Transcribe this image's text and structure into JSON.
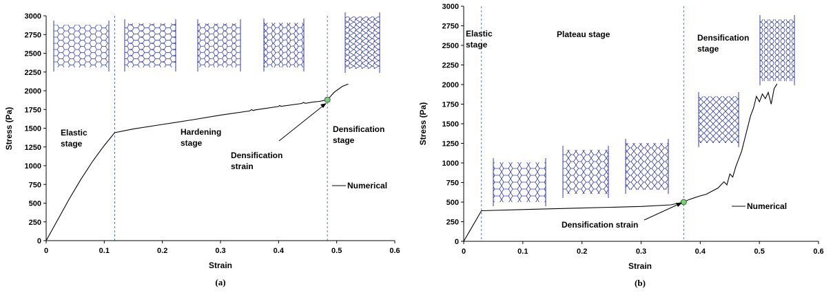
{
  "chart_data": [
    {
      "type": "line",
      "caption": "(a)",
      "xlabel": "Strain",
      "ylabel": "Stress (Pa)",
      "xlim": [
        0,
        0.6
      ],
      "ylim": [
        0,
        3000
      ],
      "x_ticks": [
        "0",
        "0.1",
        "0.2",
        "0.3",
        "0.4",
        "0.5",
        "0.6"
      ],
      "y_ticks": [
        "0",
        "250",
        "500",
        "750",
        "1000",
        "1250",
        "1500",
        "1750",
        "2000",
        "2250",
        "2500",
        "2750",
        "3000"
      ],
      "grid": false,
      "legend_position": "right",
      "series": [
        {
          "name": "Numerical",
          "x": [
            0,
            0.02,
            0.04,
            0.06,
            0.08,
            0.1,
            0.118,
            0.15,
            0.2,
            0.25,
            0.3,
            0.35,
            0.354,
            0.356,
            0.36,
            0.4,
            0.402,
            0.404,
            0.44,
            0.443,
            0.446,
            0.46,
            0.47,
            0.484,
            0.49,
            0.495,
            0.5,
            0.51,
            0.52
          ],
          "y": [
            0,
            280,
            560,
            820,
            1060,
            1270,
            1440,
            1490,
            1550,
            1610,
            1675,
            1730,
            1750,
            1735,
            1745,
            1790,
            1805,
            1792,
            1830,
            1845,
            1832,
            1850,
            1858,
            1880,
            1930,
            1975,
            2005,
            2060,
            2090
          ]
        }
      ],
      "vlines": [
        0.118,
        0.484
      ],
      "marker": {
        "x": 0.484,
        "y": 1880
      },
      "annotations": [
        {
          "lines": [
            "Elastic",
            "stage"
          ]
        },
        {
          "lines": [
            "Hardening",
            "stage"
          ]
        },
        {
          "lines": [
            "Densification",
            "stage"
          ]
        },
        {
          "lines": [
            "Densification",
            "strain"
          ]
        }
      ]
    },
    {
      "type": "line",
      "caption": "(b)",
      "xlabel": "Strain",
      "ylabel": "Stress (Pa)",
      "xlim": [
        0,
        0.6
      ],
      "ylim": [
        0,
        3000
      ],
      "x_ticks": [
        "0",
        "0.1",
        "0.2",
        "0.3",
        "0.4",
        "0.5",
        "0.6"
      ],
      "y_ticks": [
        "0",
        "250",
        "500",
        "750",
        "1000",
        "1250",
        "1500",
        "1750",
        "2000",
        "2250",
        "2500",
        "2750",
        "3000"
      ],
      "grid": false,
      "legend_position": "right",
      "series": [
        {
          "name": "Numerical",
          "x": [
            0,
            0.01,
            0.02,
            0.03,
            0.1,
            0.2,
            0.3,
            0.35,
            0.372,
            0.38,
            0.39,
            0.4,
            0.41,
            0.42,
            0.43,
            0.44,
            0.445,
            0.45,
            0.455,
            0.46,
            0.465,
            0.47,
            0.475,
            0.48,
            0.485,
            0.49,
            0.495,
            0.5,
            0.505,
            0.51,
            0.515,
            0.52,
            0.525,
            0.53
          ],
          "y": [
            0,
            130,
            260,
            390,
            405,
            425,
            445,
            465,
            500,
            530,
            555,
            580,
            600,
            640,
            680,
            760,
            720,
            860,
            820,
            950,
            1050,
            1150,
            1300,
            1450,
            1600,
            1700,
            1850,
            1780,
            1880,
            1820,
            1900,
            1750,
            1950,
            2010
          ]
        }
      ],
      "vlines": [
        0.03,
        0.372
      ],
      "marker": {
        "x": 0.372,
        "y": 500
      },
      "annotations": [
        {
          "lines": [
            "Elastic",
            "stage"
          ]
        },
        {
          "lines": [
            "Plateau stage"
          ]
        },
        {
          "lines": [
            "Densification",
            "stage"
          ]
        },
        {
          "lines": [
            "Densification strain"
          ]
        }
      ]
    }
  ]
}
